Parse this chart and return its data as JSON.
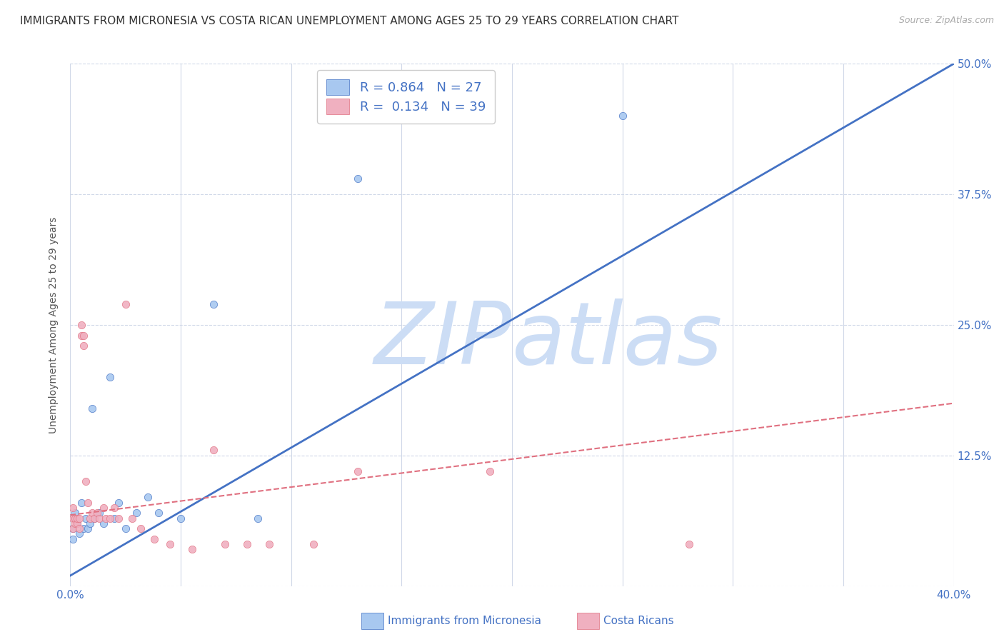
{
  "title": "IMMIGRANTS FROM MICRONESIA VS COSTA RICAN UNEMPLOYMENT AMONG AGES 25 TO 29 YEARS CORRELATION CHART",
  "source": "Source: ZipAtlas.com",
  "ylabel": "Unemployment Among Ages 25 to 29 years",
  "xlim": [
    0.0,
    0.4
  ],
  "ylim": [
    0.0,
    0.5
  ],
  "xticks": [
    0.0,
    0.05,
    0.1,
    0.15,
    0.2,
    0.25,
    0.3,
    0.35,
    0.4
  ],
  "xticklabels": [
    "0.0%",
    "",
    "",
    "",
    "",
    "",
    "",
    "",
    "40.0%"
  ],
  "yticks": [
    0.0,
    0.125,
    0.25,
    0.375,
    0.5
  ],
  "ytick_left_labels": [
    "",
    "",
    "",
    "",
    ""
  ],
  "ytick_right_labels": [
    "",
    "12.5%",
    "25.0%",
    "37.5%",
    "50.0%"
  ],
  "legend_R1": "0.864",
  "legend_N1": "27",
  "legend_R2": "0.134",
  "legend_N2": "39",
  "blue_scatter_x": [
    0.001,
    0.001,
    0.002,
    0.002,
    0.003,
    0.004,
    0.005,
    0.006,
    0.007,
    0.008,
    0.009,
    0.01,
    0.011,
    0.013,
    0.015,
    0.018,
    0.02,
    0.022,
    0.025,
    0.03,
    0.035,
    0.04,
    0.05,
    0.065,
    0.085,
    0.13,
    0.25
  ],
  "blue_scatter_y": [
    0.055,
    0.045,
    0.065,
    0.07,
    0.06,
    0.05,
    0.08,
    0.055,
    0.065,
    0.055,
    0.06,
    0.17,
    0.065,
    0.07,
    0.06,
    0.2,
    0.065,
    0.08,
    0.055,
    0.07,
    0.085,
    0.07,
    0.065,
    0.27,
    0.065,
    0.39,
    0.45
  ],
  "pink_scatter_x": [
    0.001,
    0.001,
    0.001,
    0.002,
    0.002,
    0.003,
    0.003,
    0.004,
    0.004,
    0.005,
    0.005,
    0.006,
    0.006,
    0.007,
    0.008,
    0.009,
    0.01,
    0.011,
    0.012,
    0.013,
    0.015,
    0.016,
    0.018,
    0.02,
    0.022,
    0.025,
    0.028,
    0.032,
    0.038,
    0.045,
    0.055,
    0.065,
    0.07,
    0.08,
    0.09,
    0.11,
    0.13,
    0.19,
    0.28
  ],
  "pink_scatter_y": [
    0.055,
    0.065,
    0.075,
    0.06,
    0.065,
    0.06,
    0.065,
    0.065,
    0.055,
    0.24,
    0.25,
    0.24,
    0.23,
    0.1,
    0.08,
    0.065,
    0.07,
    0.065,
    0.07,
    0.065,
    0.075,
    0.065,
    0.065,
    0.075,
    0.065,
    0.27,
    0.065,
    0.055,
    0.045,
    0.04,
    0.035,
    0.13,
    0.04,
    0.04,
    0.04,
    0.04,
    0.11,
    0.11,
    0.04
  ],
  "blue_line_x": [
    0.0,
    0.4
  ],
  "blue_line_y": [
    0.01,
    0.5
  ],
  "pink_line_x": [
    0.0,
    0.4
  ],
  "pink_line_y": [
    0.068,
    0.175
  ],
  "blue_scatter_color": "#a8c8f0",
  "pink_scatter_color": "#f0b0c0",
  "blue_line_color": "#4472c4",
  "pink_line_color": "#e07080",
  "watermark_zip": "ZIP",
  "watermark_atlas": "atlas",
  "watermark_color": "#ccddf5",
  "background_color": "#ffffff",
  "grid_color": "#d0d8e8",
  "title_fontsize": 11,
  "label_fontsize": 10,
  "tick_fontsize": 11,
  "source_fontsize": 9,
  "legend_fontsize": 13,
  "scatter_size": 55
}
